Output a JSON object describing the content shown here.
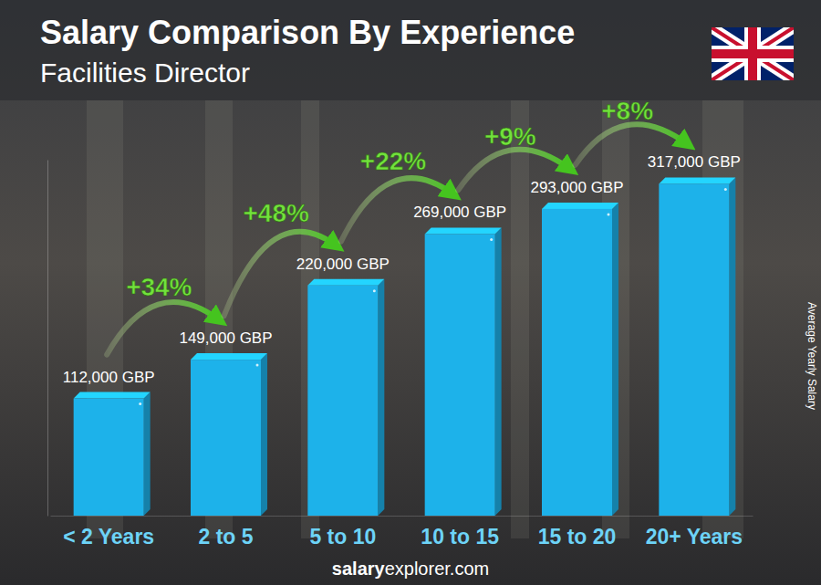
{
  "chart_data": {
    "type": "bar",
    "title": "Salary Comparison By Experience",
    "subtitle": "Facilities Director",
    "categories": [
      "< 2 Years",
      "2 to 5",
      "5 to 10",
      "10 to 15",
      "15 to 20",
      "20+ Years"
    ],
    "values": [
      112000,
      149000,
      220000,
      269000,
      293000,
      317000
    ],
    "value_labels": [
      "112,000 GBP",
      "149,000 GBP",
      "220,000 GBP",
      "269,000 GBP",
      "293,000 GBP",
      "317,000 GBP"
    ],
    "data_labels": true,
    "color": "#1db2ea",
    "ylabel": "Average Yearly Salary",
    "ylim": [
      0,
      340000
    ],
    "tick_labels": "x",
    "grid": false,
    "annotations": [
      "+34%",
      "+48%",
      "+22%",
      "+9%",
      "+8%"
    ],
    "source": "salaryexplorer.com"
  }
}
